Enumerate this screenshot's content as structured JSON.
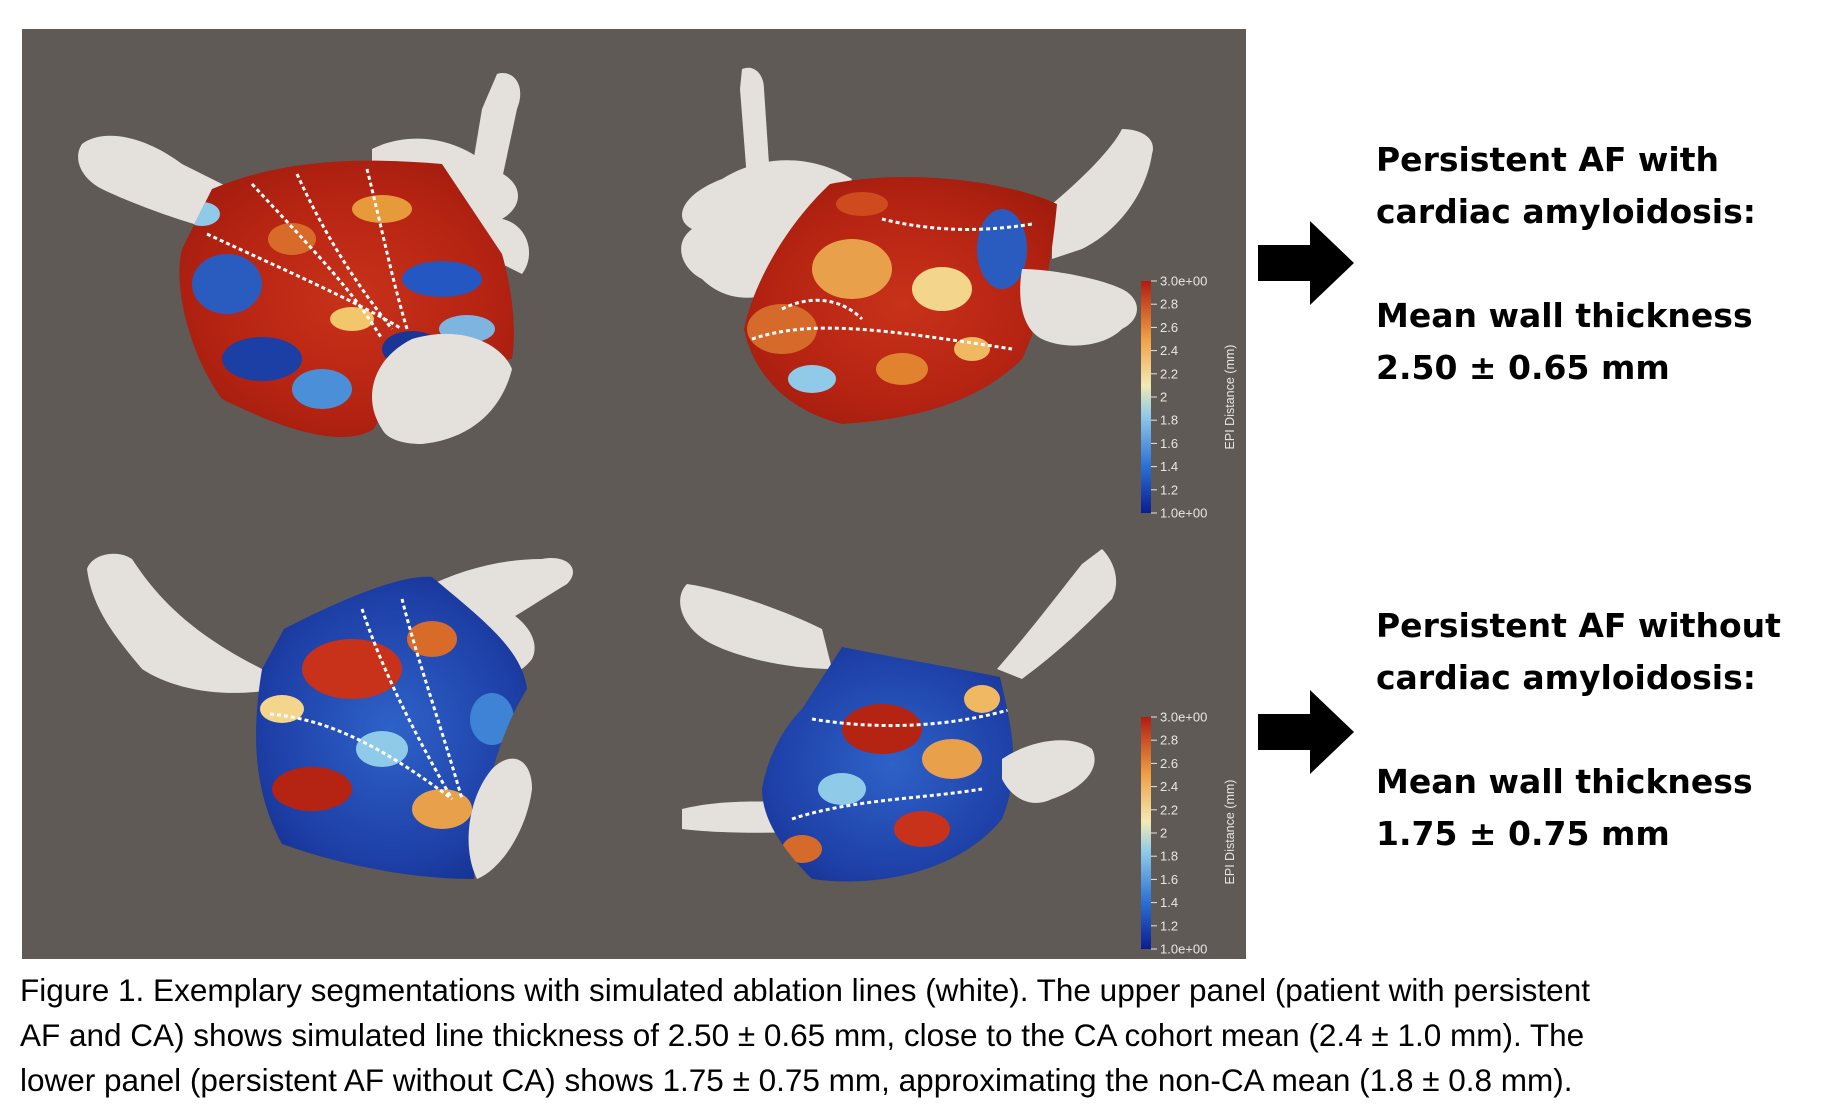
{
  "colorbar": {
    "ticks": [
      "3.0e+00",
      "2.8",
      "2.6",
      "2.4",
      "2.2",
      "2",
      "1.8",
      "1.6",
      "1.4",
      "1.2",
      "1.0e+00"
    ],
    "title": "EPI Distance (mm)",
    "colors": [
      "#0b1d8f",
      "#2b6fd4",
      "#8fcbe8",
      "#f2e9b5",
      "#f0a045",
      "#b01c10"
    ]
  },
  "panels": {
    "top": {
      "heading_line1": "Persistent AF with",
      "heading_line2": "cardiac amyloidosis:",
      "metric_label": "Mean wall thickness",
      "metric_value": "2.50 ± 0.65 mm"
    },
    "bottom": {
      "heading_line1": "Persistent AF without",
      "heading_line2": "cardiac amyloidosis:",
      "metric_label": "Mean wall thickness",
      "metric_value": "1.75 ± 0.75 mm"
    }
  },
  "caption": {
    "line1": "Figure 1. Exemplary segmentations with simulated ablation lines (white). The upper panel (patient with persistent",
    "line2": "AF and CA) shows simulated line thickness of 2.50 ± 0.65 mm, close to the CA cohort mean (2.4 ± 1.0 mm). The",
    "line3": "lower panel (persistent AF without CA) shows 1.75 ± 0.75 mm, approximating the non-CA mean (1.8 ± 0.8 mm)."
  },
  "colors": {
    "viewport_background": "#5f5a56",
    "anatomy_shell": "#e4e1dc",
    "ablation_line": "#ffffff",
    "arrow": "#000000"
  }
}
